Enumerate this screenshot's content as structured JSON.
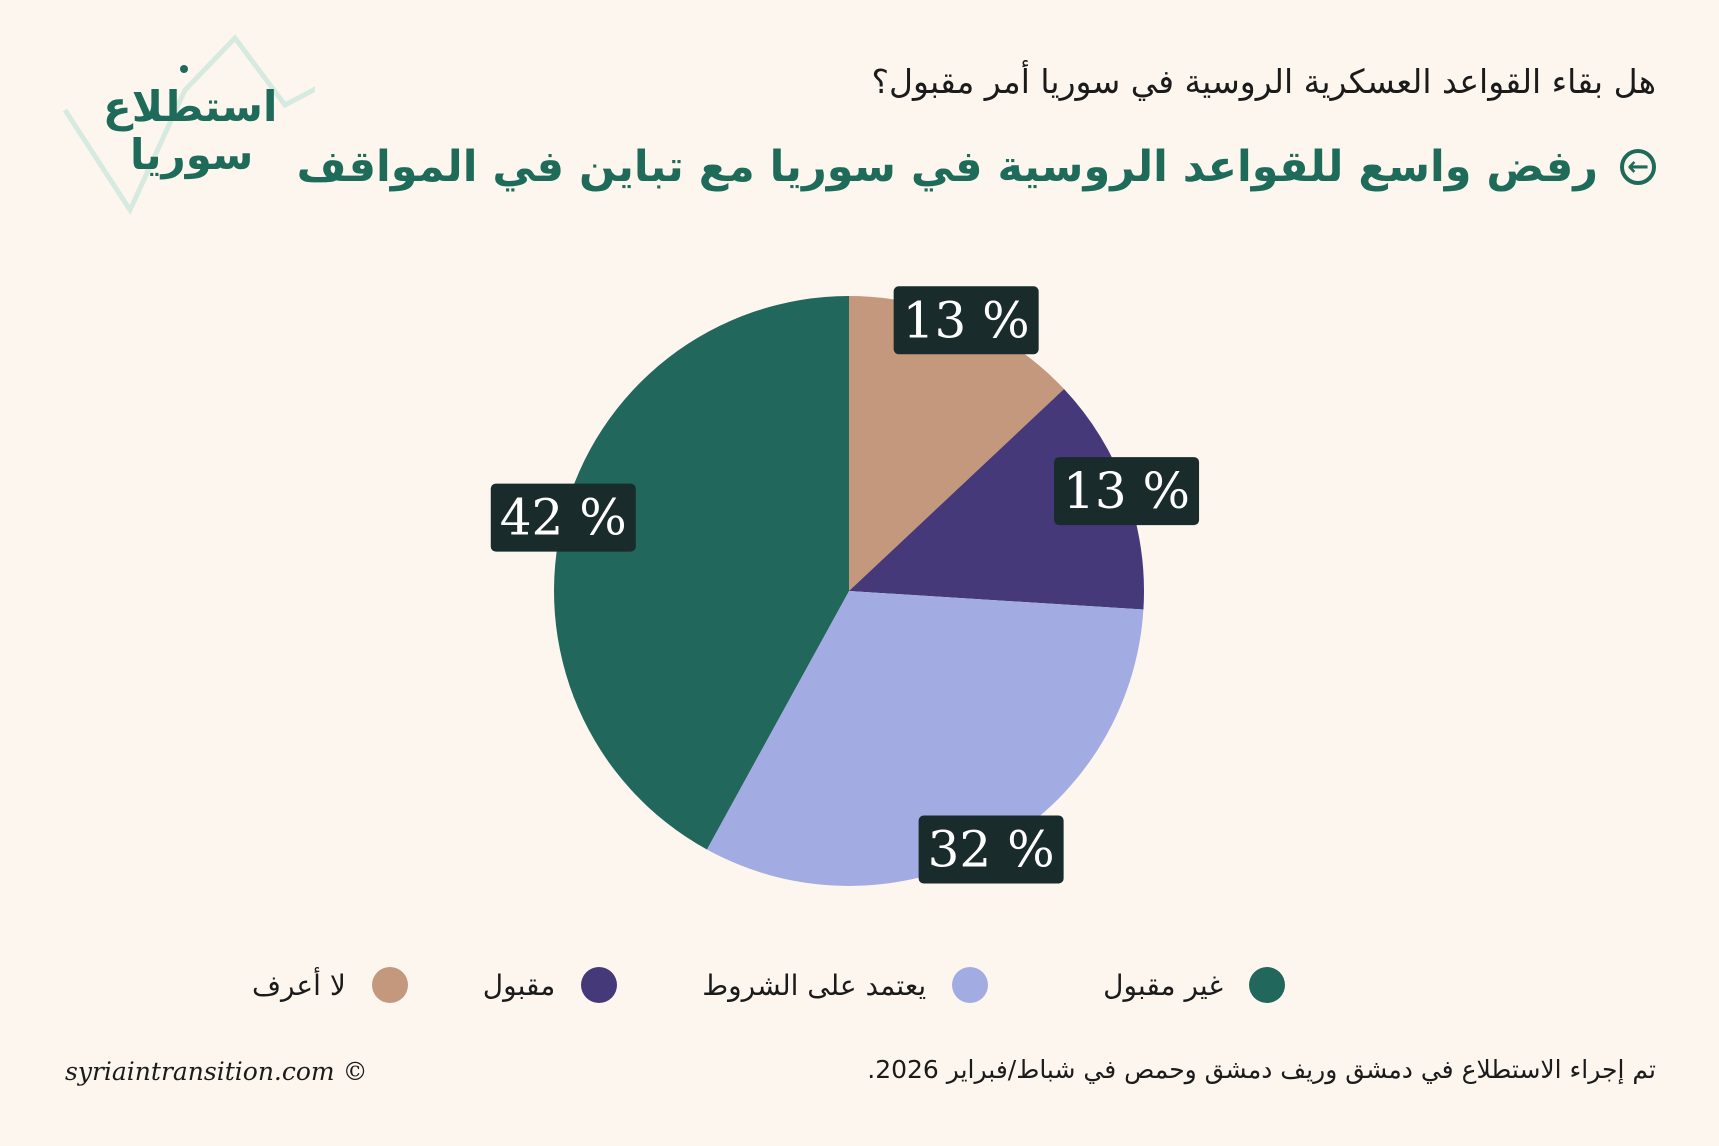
{
  "logo": {
    "line1": "استطلاع",
    "line2": "سوريا"
  },
  "colors": {
    "background": "#fdf6ef",
    "accent": "#1f6b5a",
    "label_box": "#1a2b2b"
  },
  "header": {
    "question": "هل بقاء القواعد العسكرية الروسية في سوريا أمر مقبول؟",
    "headline": "رفض واسع للقواعد الروسية في سوريا مع تباين في المواقف",
    "arrow_icon": "arrow-left-circle-icon"
  },
  "chart_data": {
    "type": "pie",
    "start_angle_deg": 0,
    "direction": "clockwise",
    "slices": [
      {
        "label": "لا أعرف",
        "value": 13,
        "display": "13 %",
        "color": "#c4987c"
      },
      {
        "label": "مقبول",
        "value": 13,
        "display": "13 %",
        "color": "#45397a"
      },
      {
        "label": "يعتمد على الشروط",
        "value": 32,
        "display": "32 %",
        "color": "#a2ace3"
      },
      {
        "label": "غير مقبول",
        "value": 42,
        "display": "42 %",
        "color": "#22675b"
      }
    ],
    "legend_order": [
      "غير مقبول",
      "يعتمد على الشروط",
      "مقبول",
      "لا أعرف"
    ]
  },
  "footer": {
    "note": "تم إجراء الاستطلاع في دمشق وريف دمشق وحمص في شباط/فبراير 2026.",
    "credit": "syriaintransition.com ©"
  }
}
